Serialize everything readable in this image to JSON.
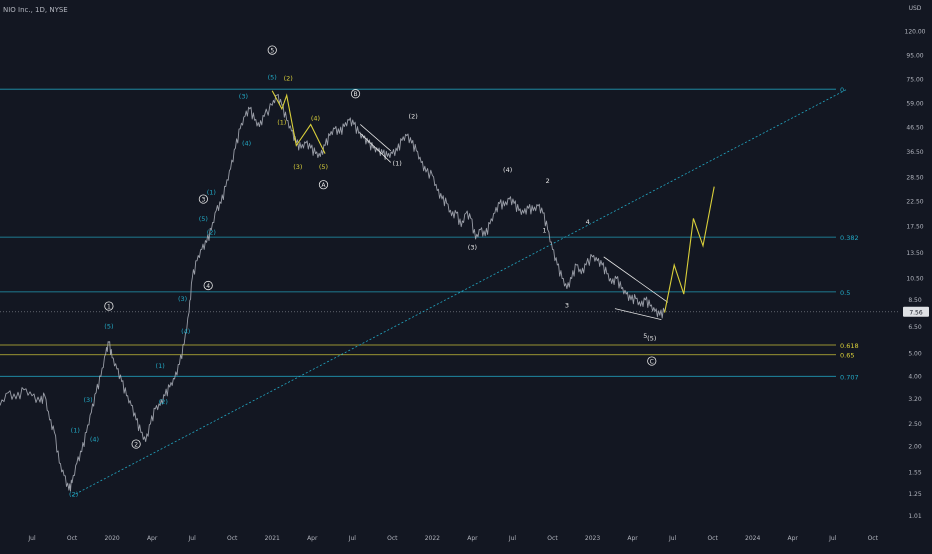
{
  "header": {
    "title": "NIO Inc., 1D, NYSE"
  },
  "colors": {
    "background": "#131722",
    "price": "#b2b5be",
    "cyan": "#22a8c4",
    "yellow": "#d9cf3a",
    "white": "#e6e6e6",
    "grid_text": "#b2b5be",
    "price_tag_bg": "#dfe1e5"
  },
  "chart_data": {
    "type": "line",
    "yscale": "log",
    "ylim": [
      0.95,
      140
    ],
    "currency": "USD",
    "y_ticks": [
      "120.00",
      "95.00",
      "75.00",
      "59.00",
      "46.50",
      "36.50",
      "28.50",
      "22.50",
      "17.50",
      "13.50",
      "10.50",
      "8.50",
      "6.50",
      "5.00",
      "4.00",
      "3.20",
      "2.50",
      "2.00",
      "1.55",
      "1.25",
      "1.01"
    ],
    "y_tick_values": [
      120,
      95,
      75,
      59,
      46.5,
      36.5,
      28.5,
      22.5,
      17.5,
      13.5,
      10.5,
      8.5,
      6.5,
      5.0,
      4.0,
      3.2,
      2.5,
      2.0,
      1.55,
      1.25,
      1.01
    ],
    "x_ticks": [
      "Jul",
      "Oct",
      "2020",
      "Apr",
      "Jul",
      "Oct",
      "2021",
      "Apr",
      "Jul",
      "Oct",
      "2022",
      "Apr",
      "Jul",
      "Oct",
      "2023",
      "Apr",
      "Jul",
      "Oct",
      "2024",
      "Apr",
      "Jul",
      "Oct"
    ],
    "x_tick_values": [
      2019.5,
      2019.75,
      2020.0,
      2020.25,
      2020.5,
      2020.75,
      2021.0,
      2021.25,
      2021.5,
      2021.75,
      2022.0,
      2022.25,
      2022.5,
      2022.75,
      2023.0,
      2023.25,
      2023.5,
      2023.75,
      2024.0,
      2024.25,
      2024.5,
      2024.75
    ],
    "xlim": [
      2019.3,
      2024.92
    ],
    "last_price": "7.56",
    "last_price_value": 7.56,
    "price_series": {
      "name": "NIO",
      "points": [
        [
          2019.3,
          3.0
        ],
        [
          2019.35,
          3.4
        ],
        [
          2019.4,
          3.2
        ],
        [
          2019.45,
          3.5
        ],
        [
          2019.5,
          3.3
        ],
        [
          2019.55,
          3.1
        ],
        [
          2019.58,
          3.3
        ],
        [
          2019.61,
          2.6
        ],
        [
          2019.64,
          2.3
        ],
        [
          2019.67,
          1.7
        ],
        [
          2019.7,
          1.5
        ],
        [
          2019.73,
          1.3
        ],
        [
          2019.75,
          1.4
        ],
        [
          2019.78,
          1.7
        ],
        [
          2019.81,
          1.9
        ],
        [
          2019.84,
          2.3
        ],
        [
          2019.87,
          2.8
        ],
        [
          2019.9,
          3.4
        ],
        [
          2019.93,
          4.0
        ],
        [
          2019.96,
          5.0
        ],
        [
          2019.98,
          5.6
        ],
        [
          2020.0,
          4.8
        ],
        [
          2020.03,
          4.3
        ],
        [
          2020.06,
          3.8
        ],
        [
          2020.09,
          3.3
        ],
        [
          2020.12,
          3.0
        ],
        [
          2020.15,
          2.6
        ],
        [
          2020.18,
          2.3
        ],
        [
          2020.21,
          2.1
        ],
        [
          2020.24,
          2.5
        ],
        [
          2020.27,
          2.9
        ],
        [
          2020.3,
          3.0
        ],
        [
          2020.33,
          3.3
        ],
        [
          2020.36,
          3.6
        ],
        [
          2020.39,
          3.9
        ],
        [
          2020.42,
          4.5
        ],
        [
          2020.45,
          5.5
        ],
        [
          2020.48,
          7.5
        ],
        [
          2020.5,
          10.5
        ],
        [
          2020.53,
          12.5
        ],
        [
          2020.56,
          14.0
        ],
        [
          2020.59,
          15.0
        ],
        [
          2020.62,
          17.0
        ],
        [
          2020.65,
          20.5
        ],
        [
          2020.68,
          22.0
        ],
        [
          2020.71,
          26.0
        ],
        [
          2020.74,
          31.0
        ],
        [
          2020.77,
          38.0
        ],
        [
          2020.8,
          46.0
        ],
        [
          2020.83,
          52.0
        ],
        [
          2020.86,
          56.0
        ],
        [
          2020.89,
          50.0
        ],
        [
          2020.92,
          47.0
        ],
        [
          2020.95,
          52.0
        ],
        [
          2021.0,
          58.0
        ],
        [
          2021.03,
          64.0
        ],
        [
          2021.06,
          58.0
        ],
        [
          2021.09,
          50.0
        ],
        [
          2021.12,
          45.0
        ],
        [
          2021.15,
          40.0
        ],
        [
          2021.18,
          38.0
        ],
        [
          2021.21,
          40.0
        ],
        [
          2021.24,
          38.0
        ],
        [
          2021.27,
          36.0
        ],
        [
          2021.3,
          35.0
        ],
        [
          2021.33,
          39.0
        ],
        [
          2021.36,
          43.0
        ],
        [
          2021.39,
          46.0
        ],
        [
          2021.42,
          44.0
        ],
        [
          2021.45,
          47.0
        ],
        [
          2021.48,
          50.0
        ],
        [
          2021.51,
          48.0
        ],
        [
          2021.54,
          44.0
        ],
        [
          2021.57,
          42.0
        ],
        [
          2021.6,
          40.0
        ],
        [
          2021.63,
          38.0
        ],
        [
          2021.66,
          37.0
        ],
        [
          2021.69,
          36.0
        ],
        [
          2021.72,
          35.0
        ],
        [
          2021.75,
          36.0
        ],
        [
          2021.78,
          37.0
        ],
        [
          2021.81,
          41.0
        ],
        [
          2021.84,
          43.0
        ],
        [
          2021.87,
          40.0
        ],
        [
          2021.9,
          37.0
        ],
        [
          2021.93,
          33.0
        ],
        [
          2021.96,
          30.0
        ],
        [
          2022.0,
          29.0
        ],
        [
          2022.03,
          25.0
        ],
        [
          2022.06,
          23.0
        ],
        [
          2022.09,
          22.0
        ],
        [
          2022.12,
          19.5
        ],
        [
          2022.15,
          20.0
        ],
        [
          2022.18,
          17.5
        ],
        [
          2022.21,
          20.0
        ],
        [
          2022.24,
          19.0
        ],
        [
          2022.27,
          15.5
        ],
        [
          2022.3,
          17.0
        ],
        [
          2022.33,
          16.0
        ],
        [
          2022.36,
          18.0
        ],
        [
          2022.39,
          20.0
        ],
        [
          2022.42,
          22.0
        ],
        [
          2022.45,
          21.5
        ],
        [
          2022.48,
          23.0
        ],
        [
          2022.51,
          22.0
        ],
        [
          2022.54,
          20.5
        ],
        [
          2022.57,
          20.0
        ],
        [
          2022.6,
          21.0
        ],
        [
          2022.63,
          20.5
        ],
        [
          2022.66,
          21.5
        ],
        [
          2022.69,
          20.0
        ],
        [
          2022.72,
          17.0
        ],
        [
          2022.75,
          14.0
        ],
        [
          2022.78,
          12.0
        ],
        [
          2022.81,
          10.5
        ],
        [
          2022.84,
          9.5
        ],
        [
          2022.87,
          10.5
        ],
        [
          2022.9,
          12.0
        ],
        [
          2022.93,
          11.0
        ],
        [
          2022.96,
          12.0
        ],
        [
          2023.0,
          13.0
        ],
        [
          2023.03,
          12.5
        ],
        [
          2023.06,
          12.0
        ],
        [
          2023.09,
          11.0
        ],
        [
          2023.12,
          10.0
        ],
        [
          2023.15,
          10.5
        ],
        [
          2023.18,
          9.5
        ],
        [
          2023.21,
          9.0
        ],
        [
          2023.24,
          8.5
        ],
        [
          2023.27,
          8.6
        ],
        [
          2023.3,
          8.0
        ],
        [
          2023.33,
          8.5
        ],
        [
          2023.36,
          8.0
        ],
        [
          2023.39,
          7.6
        ],
        [
          2023.42,
          7.3
        ],
        [
          2023.45,
          7.56
        ]
      ]
    },
    "projection": {
      "name": "projection",
      "points": [
        [
          2023.45,
          7.5
        ],
        [
          2023.51,
          12.0
        ],
        [
          2023.57,
          9.0
        ],
        [
          2023.63,
          19.0
        ],
        [
          2023.69,
          14.5
        ],
        [
          2023.76,
          26.0
        ]
      ]
    },
    "yellow_wave": {
      "points": [
        [
          2021.0,
          67.0
        ],
        [
          2021.06,
          56.0
        ],
        [
          2021.09,
          64.0
        ],
        [
          2021.15,
          39.0
        ],
        [
          2021.24,
          48.0
        ],
        [
          2021.33,
          36.0
        ]
      ]
    },
    "trendline": {
      "points": [
        [
          2019.75,
          1.23
        ],
        [
          2024.59,
          68.0
        ]
      ]
    },
    "fib_levels": [
      {
        "label": "0",
        "value": 68.0,
        "color": "cyan"
      },
      {
        "label": "0.382",
        "value": 15.8,
        "color": "cyan"
      },
      {
        "label": "0.5",
        "value": 9.2,
        "color": "cyan"
      },
      {
        "label": "0.618",
        "value": 5.45,
        "color": "yellow"
      },
      {
        "label": "0.65",
        "value": 4.95,
        "color": "yellow"
      },
      {
        "label": "0.707",
        "value": 4.0,
        "color": "cyan"
      }
    ],
    "wedges": [
      {
        "upper": [
          [
            2021.55,
            48.0
          ],
          [
            2021.74,
            37.0
          ]
        ],
        "lower": [
          [
            2021.55,
            44.0
          ],
          [
            2021.74,
            33.0
          ]
        ]
      },
      {
        "upper": [
          [
            2023.07,
            13.0
          ],
          [
            2023.47,
            8.3
          ]
        ],
        "lower": [
          [
            2023.14,
            7.8
          ],
          [
            2023.43,
            7.0
          ]
        ]
      }
    ],
    "wave_labels": [
      {
        "text": "(1)",
        "x": 2019.77,
        "v": 2.3,
        "color": "cyan"
      },
      {
        "text": "(2)",
        "x": 2019.76,
        "v": 1.22,
        "color": "cyan"
      },
      {
        "text": "(3)",
        "x": 2019.85,
        "v": 3.1,
        "color": "cyan"
      },
      {
        "text": "(4)",
        "x": 2019.89,
        "v": 2.1,
        "color": "cyan"
      },
      {
        "text": "(5)",
        "x": 2019.98,
        "v": 6.4,
        "color": "cyan"
      },
      {
        "text": "(1)",
        "x": 2020.3,
        "v": 4.35,
        "color": "cyan"
      },
      {
        "text": "(2)",
        "x": 2020.32,
        "v": 3.05,
        "color": "cyan"
      },
      {
        "text": "(3)",
        "x": 2020.44,
        "v": 8.4,
        "color": "cyan"
      },
      {
        "text": "(4)",
        "x": 2020.46,
        "v": 6.1,
        "color": "cyan"
      },
      {
        "text": "(5)",
        "x": 2020.57,
        "v": 18.5,
        "color": "cyan"
      },
      {
        "text": "(1)",
        "x": 2020.62,
        "v": 24.0,
        "color": "cyan"
      },
      {
        "text": "(2)",
        "x": 2020.62,
        "v": 16.2,
        "color": "cyan"
      },
      {
        "text": "(3)",
        "x": 2020.82,
        "v": 62.0,
        "color": "cyan"
      },
      {
        "text": "(4)",
        "x": 2020.84,
        "v": 39.0,
        "color": "cyan"
      },
      {
        "text": "(5)",
        "x": 2021.0,
        "v": 75.0,
        "color": "cyan"
      },
      {
        "text": "(2)",
        "x": 2021.1,
        "v": 74.0,
        "color": "yellow"
      },
      {
        "text": "(1)",
        "x": 2021.06,
        "v": 48.0,
        "color": "yellow"
      },
      {
        "text": "(3)",
        "x": 2021.16,
        "v": 31.0,
        "color": "yellow"
      },
      {
        "text": "(4)",
        "x": 2021.27,
        "v": 50.0,
        "color": "yellow"
      },
      {
        "text": "(5)",
        "x": 2021.32,
        "v": 31.0,
        "color": "yellow"
      },
      {
        "text": "(1)",
        "x": 2021.78,
        "v": 32.0,
        "color": "white"
      },
      {
        "text": "(2)",
        "x": 2021.88,
        "v": 51.0,
        "color": "white"
      },
      {
        "text": "(3)",
        "x": 2022.25,
        "v": 14.0,
        "color": "white"
      },
      {
        "text": "(4)",
        "x": 2022.47,
        "v": 30.0,
        "color": "white"
      },
      {
        "text": "1",
        "x": 2022.7,
        "v": 16.5,
        "color": "white"
      },
      {
        "text": "2",
        "x": 2022.72,
        "v": 27.0,
        "color": "white"
      },
      {
        "text": "3",
        "x": 2022.84,
        "v": 7.9,
        "color": "white"
      },
      {
        "text": "4",
        "x": 2022.97,
        "v": 18.0,
        "color": "white"
      },
      {
        "text": "5",
        "x": 2023.33,
        "v": 5.85,
        "color": "white"
      },
      {
        "text": "(5)",
        "x": 2023.37,
        "v": 5.7,
        "color": "white"
      }
    ],
    "circle_labels": [
      {
        "text": "1",
        "x": 2019.98,
        "v": 8.0
      },
      {
        "text": "2",
        "x": 2020.15,
        "v": 2.05
      },
      {
        "text": "3",
        "x": 2020.57,
        "v": 23.0
      },
      {
        "text": "4",
        "x": 2020.6,
        "v": 9.8
      },
      {
        "text": "5",
        "x": 2021.0,
        "v": 100.0
      },
      {
        "text": "A",
        "x": 2021.32,
        "v": 26.5
      },
      {
        "text": "B",
        "x": 2021.52,
        "v": 65.0
      },
      {
        "text": "C",
        "x": 2023.37,
        "v": 4.65
      }
    ]
  }
}
